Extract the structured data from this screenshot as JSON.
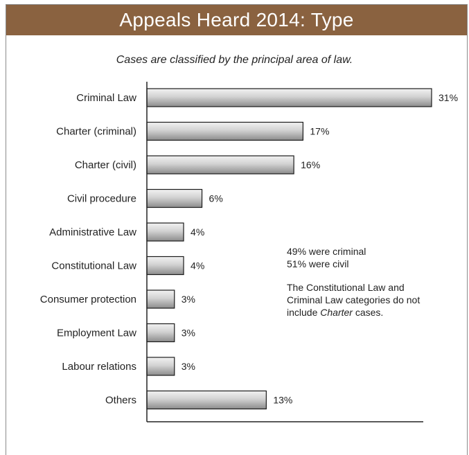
{
  "title": "Appeals Heard 2014: Type",
  "subtitle": "Cases are classified by the principal area of law.",
  "notes": {
    "line1": "49% were criminal",
    "line2": "51% were civil",
    "line3": "The Constitutional Law and",
    "line4": "Criminal Law categories do not",
    "line5_pre": "include ",
    "line5_em": "Charter",
    "line5_post": " cases."
  },
  "colors": {
    "title_bg": "#8a6240",
    "bar_light": "#e6e6e6",
    "bar_dark": "#8f8f8f"
  },
  "chart_data": {
    "type": "bar",
    "orientation": "horizontal",
    "categories": [
      "Criminal Law",
      "Charter (criminal)",
      "Charter (civil)",
      "Civil procedure",
      "Administrative Law",
      "Constitutional Law",
      "Consumer protection",
      "Employment Law",
      "Labour relations",
      "Others"
    ],
    "values": [
      31,
      17,
      16,
      6,
      4,
      4,
      3,
      3,
      3,
      13
    ],
    "data_labels": [
      "31%",
      "17%",
      "16%",
      "6%",
      "4%",
      "4%",
      "3%",
      "3%",
      "3%",
      "13%"
    ],
    "xlim": [
      0,
      31
    ],
    "grid": false,
    "legend": "none"
  }
}
